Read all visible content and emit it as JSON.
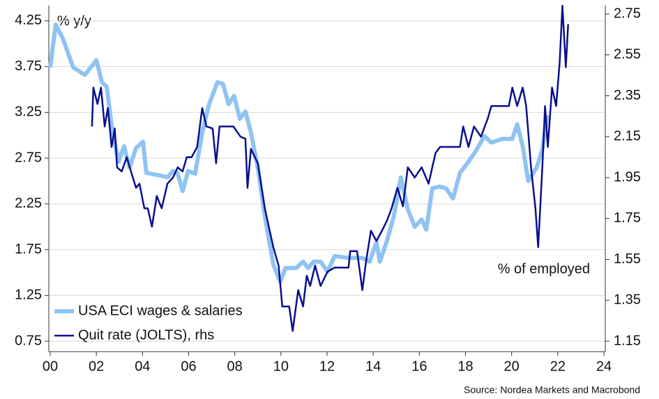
{
  "chart_data": {
    "type": "line",
    "y_label": "% y/y",
    "y2_label": "% of employed",
    "source": "Source: Nordea Markets and Macrobond",
    "xlim": [
      -0.06,
      24.06
    ],
    "xticks": [
      {
        "value": 0,
        "label": "00"
      },
      {
        "value": 2,
        "label": "02"
      },
      {
        "value": 4,
        "label": "04"
      },
      {
        "value": 6,
        "label": "06"
      },
      {
        "value": 8,
        "label": "08"
      },
      {
        "value": 10,
        "label": "10"
      },
      {
        "value": 12,
        "label": "12"
      },
      {
        "value": 14,
        "label": "14"
      },
      {
        "value": 16,
        "label": "16"
      },
      {
        "value": 18,
        "label": "18"
      },
      {
        "value": 20,
        "label": "20"
      },
      {
        "value": 22,
        "label": "22"
      },
      {
        "value": 24,
        "label": "24"
      }
    ],
    "ylim": [
      0.636,
      4.417
    ],
    "yticks": [
      4.25,
      3.75,
      3.25,
      2.75,
      2.25,
      1.75,
      1.25,
      0.75
    ],
    "y2lim": [
      1.099,
      2.791
    ],
    "y2ticks": [
      2.75,
      2.55,
      2.35,
      2.15,
      1.95,
      1.75,
      1.55,
      1.35,
      1.15
    ],
    "grid": true,
    "legend": "lower left",
    "series": [
      {
        "name": "USA ECI wages & salaries",
        "color": "#8fc3f2",
        "width": 6,
        "x": [
          0.0,
          0.24,
          0.54,
          1.0,
          1.5,
          2.0,
          2.24,
          2.45,
          2.66,
          2.96,
          3.2,
          3.44,
          3.72,
          4.02,
          4.17,
          4.77,
          5.08,
          5.32,
          5.53,
          5.74,
          5.98,
          6.28,
          6.59,
          6.89,
          7.25,
          7.49,
          7.73,
          7.97,
          8.22,
          8.46,
          8.7,
          9.0,
          9.3,
          9.67,
          9.97,
          10.2,
          10.66,
          10.96,
          11.18,
          11.42,
          11.72,
          12.02,
          12.33,
          12.93,
          13.53,
          13.84,
          14.14,
          14.29,
          14.6,
          14.9,
          15.2,
          15.5,
          15.8,
          16.1,
          16.3,
          16.56,
          16.86,
          17.16,
          17.46,
          17.76,
          18.07,
          18.43,
          18.82,
          19.12,
          19.58,
          20.03,
          20.24,
          20.48,
          20.72,
          21.09,
          21.33,
          21.54
        ],
        "values": [
          3.74,
          4.21,
          4.06,
          3.74,
          3.66,
          3.82,
          3.58,
          3.53,
          3.11,
          2.71,
          2.88,
          2.65,
          2.86,
          2.93,
          2.59,
          2.56,
          2.54,
          2.61,
          2.58,
          2.39,
          2.61,
          2.58,
          3.03,
          3.34,
          3.58,
          3.56,
          3.34,
          3.43,
          3.18,
          3.26,
          3.03,
          2.65,
          2.12,
          1.59,
          1.4,
          1.55,
          1.55,
          1.62,
          1.55,
          1.62,
          1.62,
          1.51,
          1.68,
          1.66,
          1.66,
          1.62,
          1.83,
          1.62,
          1.85,
          2.12,
          2.54,
          2.19,
          2.0,
          2.08,
          1.97,
          2.42,
          2.44,
          2.42,
          2.31,
          2.59,
          2.69,
          2.82,
          2.99,
          2.92,
          2.96,
          2.96,
          3.12,
          2.88,
          2.5,
          2.65,
          2.84,
          3.22
        ]
      },
      {
        "name": "Quit rate (JOLTS), rhs",
        "color": "#0a0f8c",
        "width": 2.5,
        "axis": "y2",
        "x": [
          1.81,
          1.87,
          2.05,
          2.2,
          2.36,
          2.5,
          2.66,
          2.8,
          2.9,
          3.1,
          3.32,
          3.5,
          3.72,
          3.87,
          4.08,
          4.23,
          4.41,
          4.62,
          4.83,
          5.08,
          5.32,
          5.53,
          5.74,
          5.92,
          6.13,
          6.37,
          6.59,
          6.77,
          7.04,
          7.19,
          7.34,
          7.94,
          8.25,
          8.46,
          8.55,
          8.7,
          9.0,
          9.3,
          9.67,
          9.9,
          10.06,
          10.36,
          10.51,
          10.75,
          10.96,
          11.12,
          11.27,
          11.48,
          11.72,
          12.02,
          12.33,
          12.93,
          13.0,
          13.3,
          13.53,
          13.69,
          13.9,
          14.14,
          14.38,
          14.6,
          14.8,
          15.05,
          15.29,
          15.5,
          15.8,
          16.1,
          16.4,
          16.7,
          16.9,
          17.76,
          17.9,
          18.13,
          18.37,
          18.67,
          18.97,
          19.12,
          19.88,
          20.03,
          20.24,
          20.48,
          20.63,
          20.84,
          21.03,
          21.15,
          21.33,
          21.45,
          21.57,
          21.75,
          21.93,
          22.08,
          22.2,
          22.35,
          22.45
        ],
        "values": [
          2.2,
          2.39,
          2.31,
          2.39,
          2.2,
          2.29,
          2.1,
          2.19,
          2.0,
          1.98,
          2.05,
          1.98,
          1.9,
          1.92,
          1.8,
          1.8,
          1.71,
          1.86,
          1.8,
          1.92,
          1.95,
          2.0,
          1.98,
          2.05,
          2.05,
          2.1,
          2.29,
          2.2,
          2.19,
          2.02,
          2.2,
          2.2,
          2.15,
          2.14,
          1.9,
          2.09,
          2.02,
          1.8,
          1.61,
          1.52,
          1.32,
          1.32,
          1.2,
          1.4,
          1.32,
          1.47,
          1.42,
          1.52,
          1.42,
          1.49,
          1.51,
          1.51,
          1.59,
          1.59,
          1.4,
          1.54,
          1.69,
          1.64,
          1.69,
          1.74,
          1.8,
          1.9,
          1.81,
          2.0,
          1.95,
          2.0,
          1.92,
          2.07,
          2.1,
          2.1,
          2.2,
          2.1,
          2.2,
          2.15,
          2.24,
          2.3,
          2.3,
          2.39,
          2.3,
          2.39,
          2.3,
          2.0,
          1.8,
          1.61,
          2.0,
          2.3,
          2.1,
          2.39,
          2.3,
          2.51,
          2.79,
          2.49,
          2.7
        ]
      }
    ]
  }
}
